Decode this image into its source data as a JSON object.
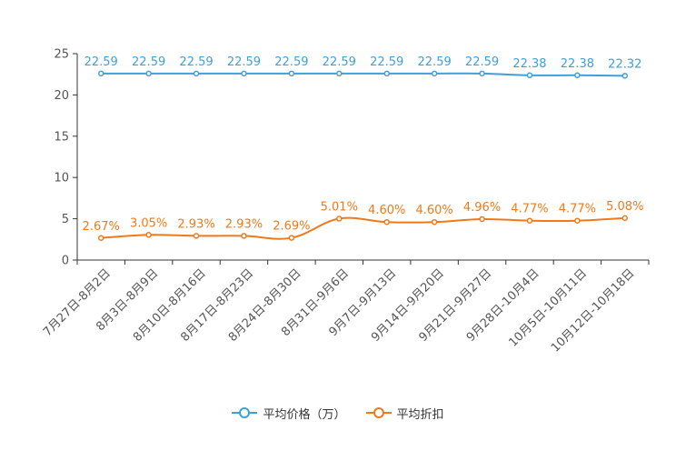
{
  "chart_data": {
    "type": "line",
    "categories": [
      "7月27日-8月2日",
      "8月3日-8月9日",
      "8月10日-8月16日",
      "8月17日-8月23日",
      "8月24日-8月30日",
      "8月31日-9月6日",
      "9月7日-9月13日",
      "9月14日-9月20日",
      "9月21日-9月27日",
      "9月28日-10月4日",
      "10月5日-10月11日",
      "10月12日-10月18日"
    ],
    "series": [
      {
        "name": "平均价格（万）",
        "color": "#3ea0d6",
        "values": [
          22.59,
          22.59,
          22.59,
          22.59,
          22.59,
          22.59,
          22.59,
          22.59,
          22.59,
          22.38,
          22.38,
          22.32
        ],
        "labels": [
          "22.59",
          "22.59",
          "22.59",
          "22.59",
          "22.59",
          "22.59",
          "22.59",
          "22.59",
          "22.59",
          "22.38",
          "22.38",
          "22.32"
        ]
      },
      {
        "name": "平均折扣",
        "color": "#f07a1a",
        "values": [
          2.67,
          3.05,
          2.93,
          2.93,
          2.69,
          5.01,
          4.6,
          4.6,
          4.96,
          4.77,
          4.77,
          5.08
        ],
        "labels": [
          "2.67%",
          "3.05%",
          "2.93%",
          "2.93%",
          "2.69%",
          "5.01%",
          "4.60%",
          "4.60%",
          "4.96%",
          "4.77%",
          "4.77%",
          "5.08%"
        ]
      }
    ],
    "yticks": [
      0,
      5,
      10,
      15,
      20,
      25
    ],
    "ylim": [
      0,
      25
    ],
    "legend_position": "bottom-center"
  }
}
